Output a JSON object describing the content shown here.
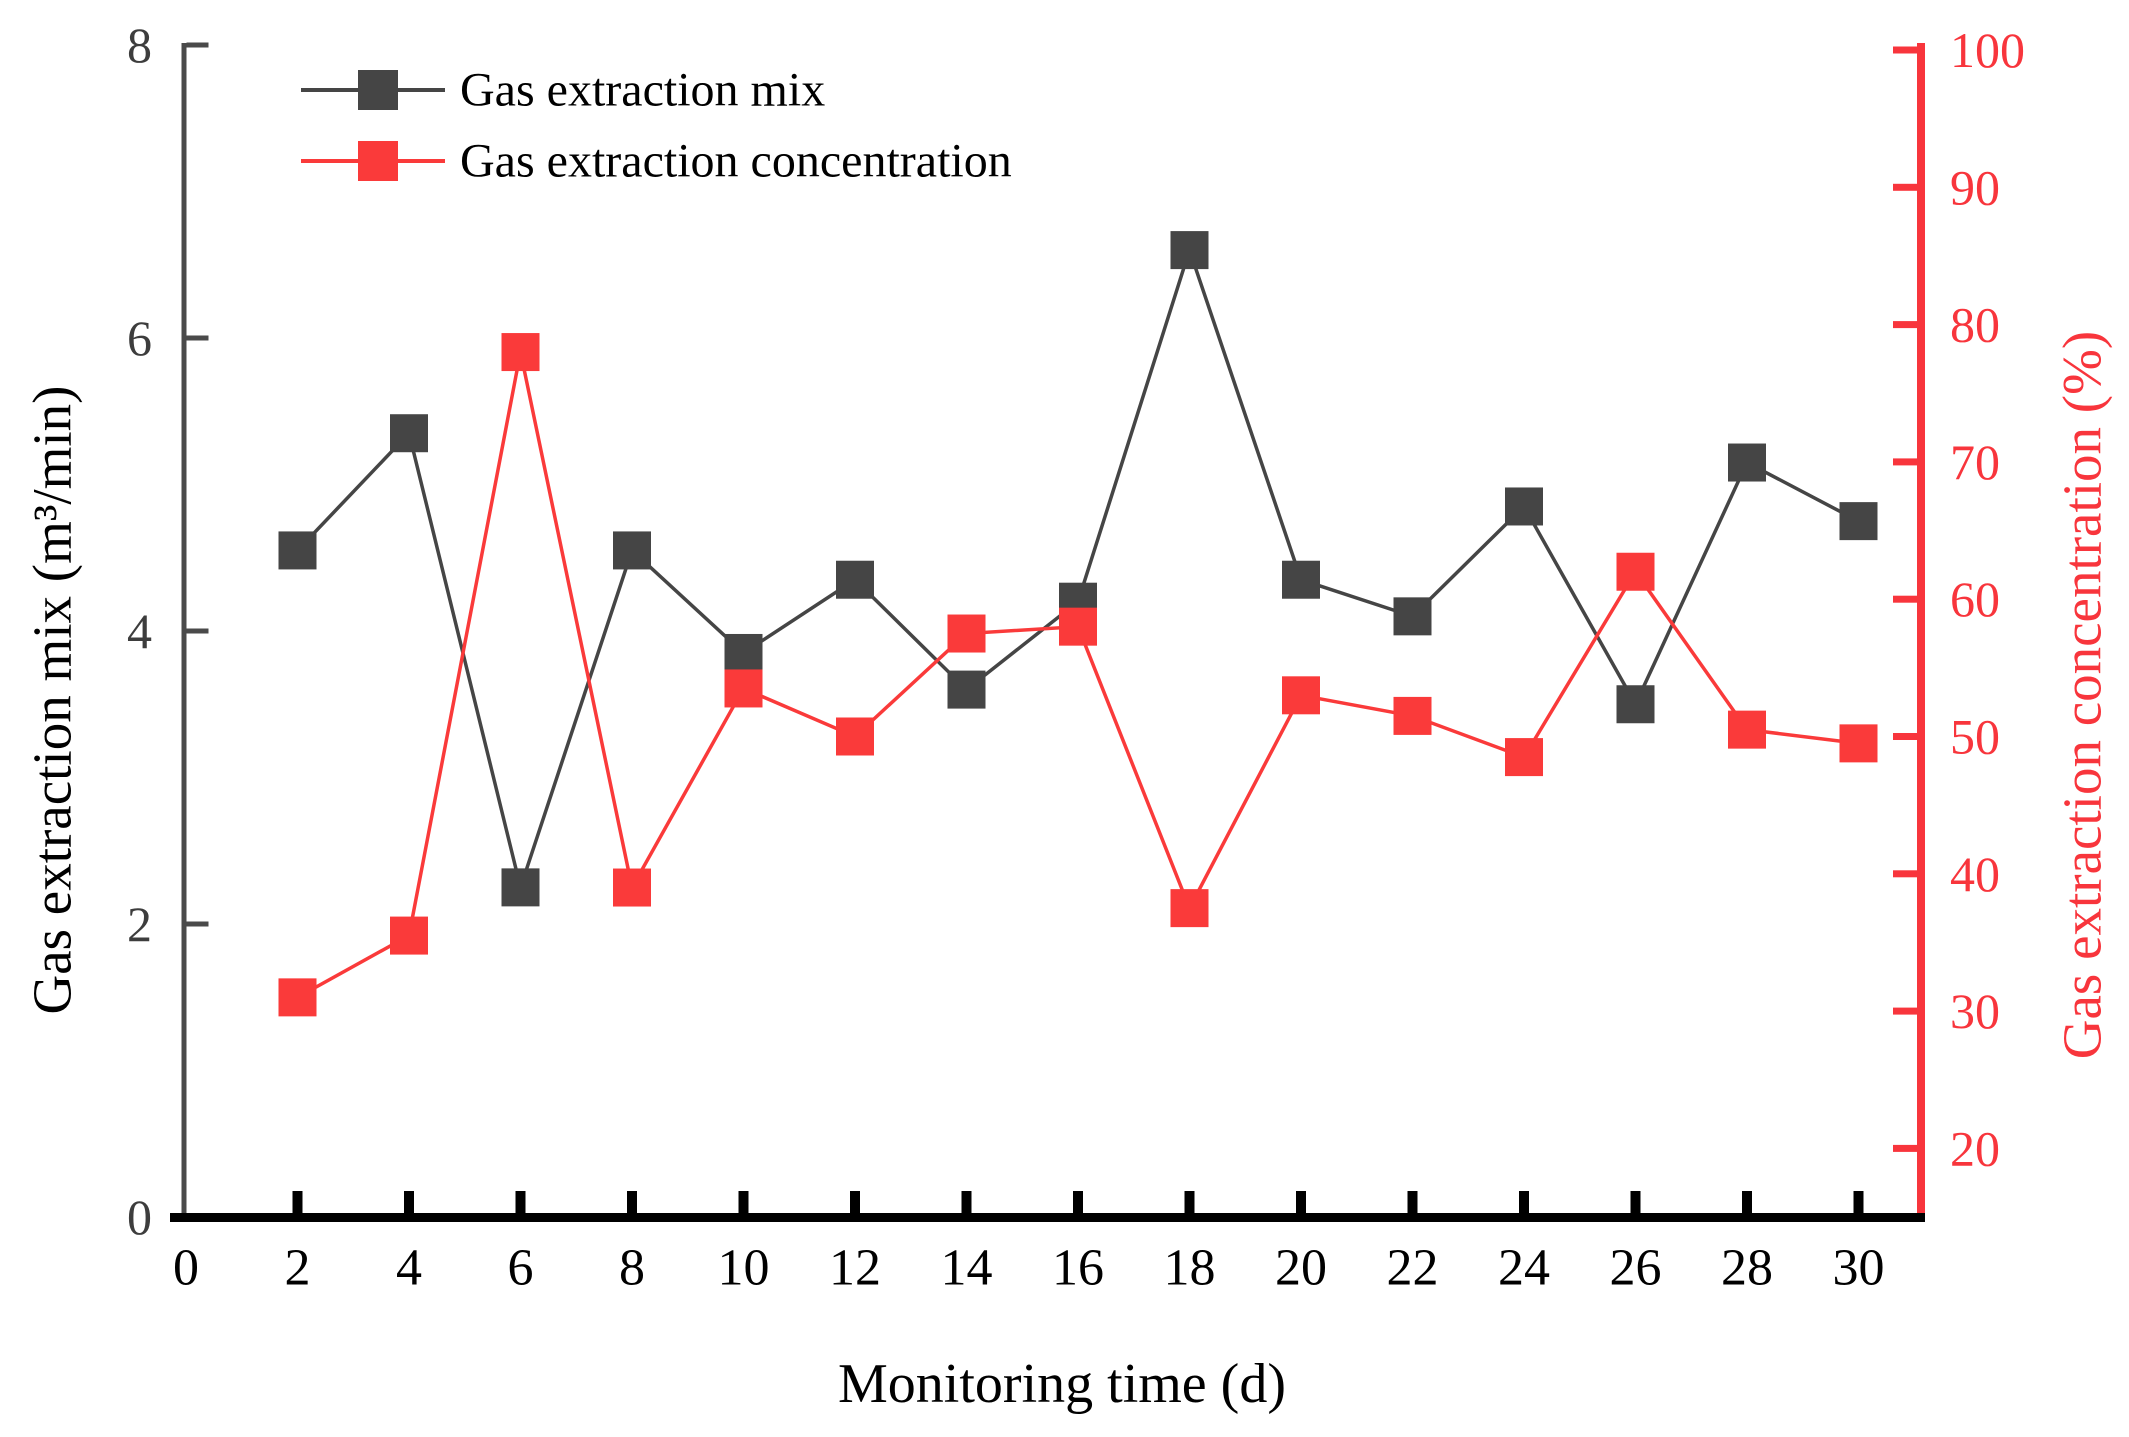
{
  "chart_data": {
    "type": "line",
    "title": "",
    "xlabel": "Monitoring time (d)",
    "grid": false,
    "legend_position": "top-left-inside",
    "x_axis": {
      "min": 0,
      "max": 31.2,
      "ticks": [
        0,
        2,
        4,
        6,
        8,
        10,
        12,
        14,
        16,
        18,
        20,
        22,
        24,
        26,
        28,
        30
      ],
      "color": "#000000"
    },
    "left_axis": {
      "label": "Gas extraction mix (m³/min)",
      "min": 0,
      "max": 8,
      "ticks": [
        0,
        2,
        4,
        6,
        8
      ],
      "color": "#3f3f3f",
      "label_color": "#000000"
    },
    "right_axis": {
      "label": "Gas extraction concentration (%)",
      "min": 15,
      "max": 100.4,
      "ticks": [
        20,
        30,
        40,
        50,
        60,
        70,
        80,
        90,
        100
      ],
      "color": "#f8353c"
    },
    "x": [
      2,
      4,
      6,
      8,
      10,
      12,
      14,
      16,
      18,
      20,
      22,
      24,
      26,
      28,
      30
    ],
    "series": [
      {
        "name": "Gas extraction mix",
        "axis": "left",
        "color": "#454545",
        "marker": "square",
        "values": [
          4.55,
          5.35,
          2.25,
          4.55,
          3.85,
          4.35,
          3.6,
          4.2,
          6.6,
          4.35,
          4.1,
          4.85,
          3.5,
          5.15,
          4.75
        ]
      },
      {
        "name": "Gas extraction concentration",
        "axis": "right",
        "color": "#fa3a3a",
        "marker": "square",
        "values": [
          31,
          35.5,
          78,
          39,
          53.5,
          50,
          57.5,
          58,
          37.5,
          53,
          51.5,
          48.5,
          62,
          50.5,
          49.5
        ]
      }
    ]
  }
}
